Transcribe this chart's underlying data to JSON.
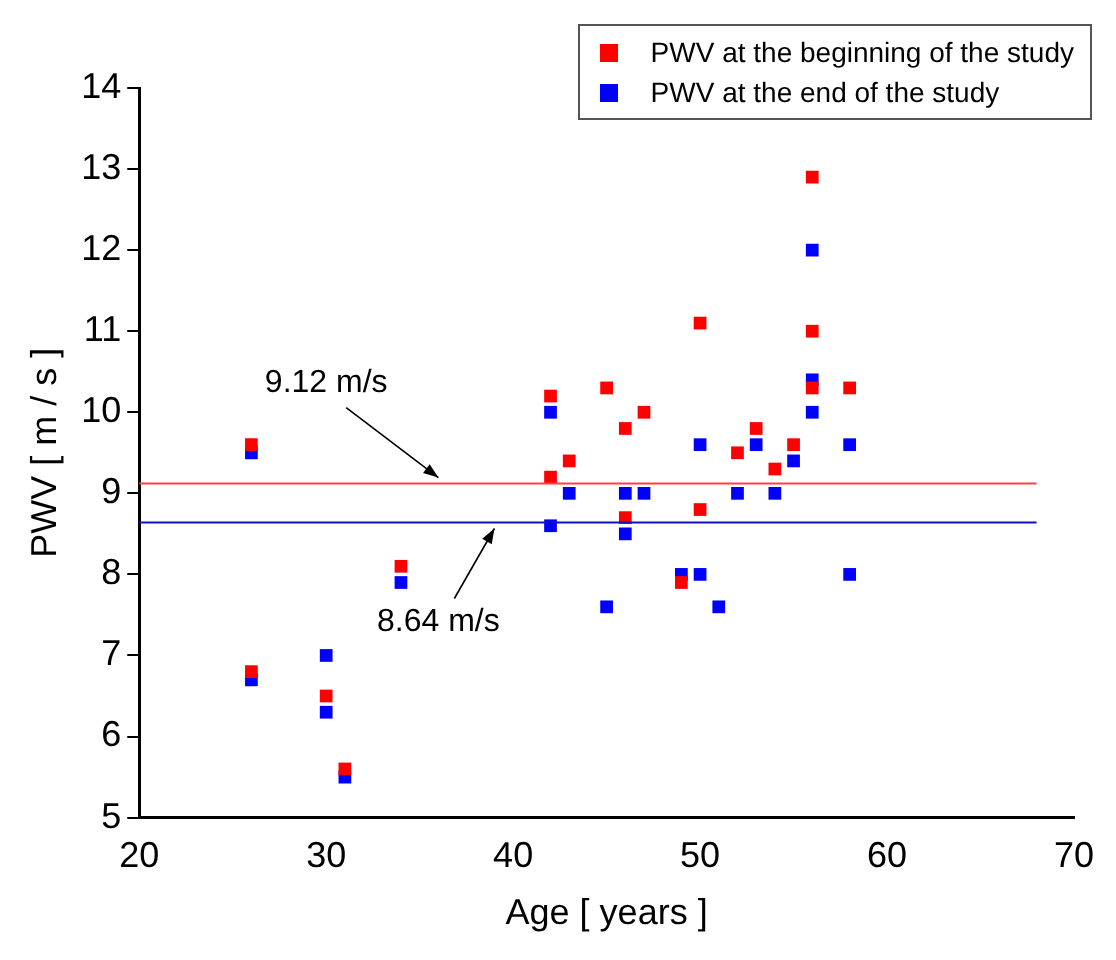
{
  "chart_data": {
    "type": "scatter",
    "xlabel": "Age [ years ]",
    "ylabel": "PWV [ m / s ]",
    "xlim": [
      20,
      70
    ],
    "xticks": [
      20,
      30,
      40,
      50,
      60,
      70
    ],
    "ylim": [
      5,
      14
    ],
    "yticks": [
      5,
      6,
      7,
      8,
      9,
      10,
      11,
      12,
      13,
      14
    ],
    "grid": false,
    "legend": "top right",
    "marker": "square",
    "series": [
      {
        "name": "PWV at the beginning of the study",
        "color": "#ff0000",
        "x": [
          26,
          26,
          30,
          31,
          34,
          42,
          42,
          43,
          45,
          46,
          46,
          47,
          49,
          50,
          50,
          52,
          53,
          54,
          55,
          56,
          56,
          56,
          58
        ],
        "values": [
          9.6,
          6.8,
          6.5,
          5.6,
          8.1,
          10.2,
          9.2,
          9.4,
          10.3,
          9.8,
          8.7,
          10.0,
          7.9,
          11.1,
          8.8,
          9.5,
          9.8,
          9.3,
          9.6,
          12.9,
          11.0,
          10.3,
          10.3
        ]
      },
      {
        "name": "PWV at the end of the study",
        "color": "#0000ff",
        "x": [
          26,
          26,
          30,
          30,
          31,
          34,
          42,
          42,
          43,
          45,
          46,
          46,
          47,
          49,
          50,
          50,
          51,
          52,
          53,
          54,
          55,
          56,
          56,
          56,
          58,
          58
        ],
        "values": [
          9.5,
          6.7,
          7.0,
          6.3,
          5.5,
          7.9,
          10.0,
          8.6,
          9.0,
          7.6,
          9.0,
          8.5,
          9.0,
          8.0,
          9.6,
          8.0,
          7.6,
          9.0,
          9.6,
          9.0,
          9.4,
          12.0,
          10.4,
          10.0,
          9.6,
          8.0
        ]
      }
    ],
    "ref_lines": [
      {
        "axis": "y",
        "value": 9.12,
        "label": "9.12 m/s",
        "color": "#ff4040"
      },
      {
        "axis": "y",
        "value": 8.64,
        "label": "8.64 m/s",
        "color": "#1010c0"
      }
    ]
  }
}
